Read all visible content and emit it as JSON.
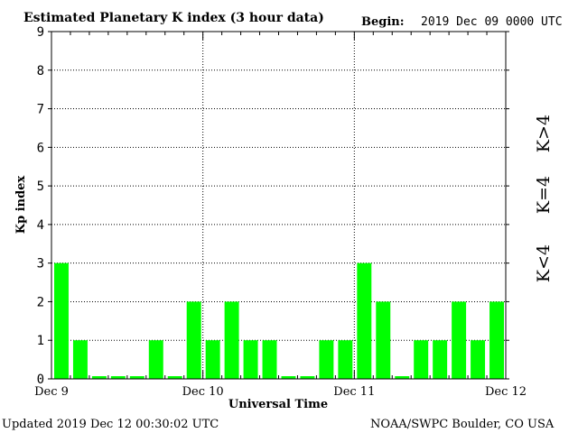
{
  "header": {
    "title": "Estimated Planetary K index (3 hour data)",
    "begin_label": "Begin:",
    "begin_value": "2019 Dec 09 0000 UTC"
  },
  "footer": {
    "updated": "Updated 2019 Dec 12 00:30:02 UTC",
    "source": "NOAA/SWPC Boulder, CO USA"
  },
  "legend": {
    "above": "K>4",
    "equal": "K=4",
    "below": "K<4"
  },
  "colors": {
    "below4": "#00ff00",
    "equal4": "#ffcc00",
    "above4": "#ff2200",
    "axis": "#000000",
    "background": "#ffffff"
  },
  "chart_data": {
    "type": "bar",
    "title": "Estimated Planetary K index (3 hour data)",
    "xlabel": "Universal Time",
    "ylabel": "Kp index",
    "ylim": [
      0,
      9
    ],
    "yticks": [
      "0",
      "1",
      "2",
      "3",
      "4",
      "5",
      "6",
      "7",
      "8",
      "9"
    ],
    "xticks": [
      "Dec 9",
      "Dec 10",
      "Dec 11",
      "Dec 12"
    ],
    "grid": true,
    "categories": [
      "2019-12-09 00:00",
      "2019-12-09 03:00",
      "2019-12-09 06:00",
      "2019-12-09 09:00",
      "2019-12-09 12:00",
      "2019-12-09 15:00",
      "2019-12-09 18:00",
      "2019-12-09 21:00",
      "2019-12-10 00:00",
      "2019-12-10 03:00",
      "2019-12-10 06:00",
      "2019-12-10 09:00",
      "2019-12-10 12:00",
      "2019-12-10 15:00",
      "2019-12-10 18:00",
      "2019-12-10 21:00",
      "2019-12-11 00:00",
      "2019-12-11 03:00",
      "2019-12-11 06:00",
      "2019-12-11 09:00",
      "2019-12-11 12:00",
      "2019-12-11 15:00",
      "2019-12-11 18:00",
      "2019-12-11 21:00"
    ],
    "values": [
      3,
      1,
      0,
      0,
      0,
      1,
      0,
      2,
      1,
      2,
      1,
      1,
      0,
      0,
      1,
      1,
      3,
      2,
      0,
      1,
      1,
      2,
      1,
      2
    ]
  }
}
